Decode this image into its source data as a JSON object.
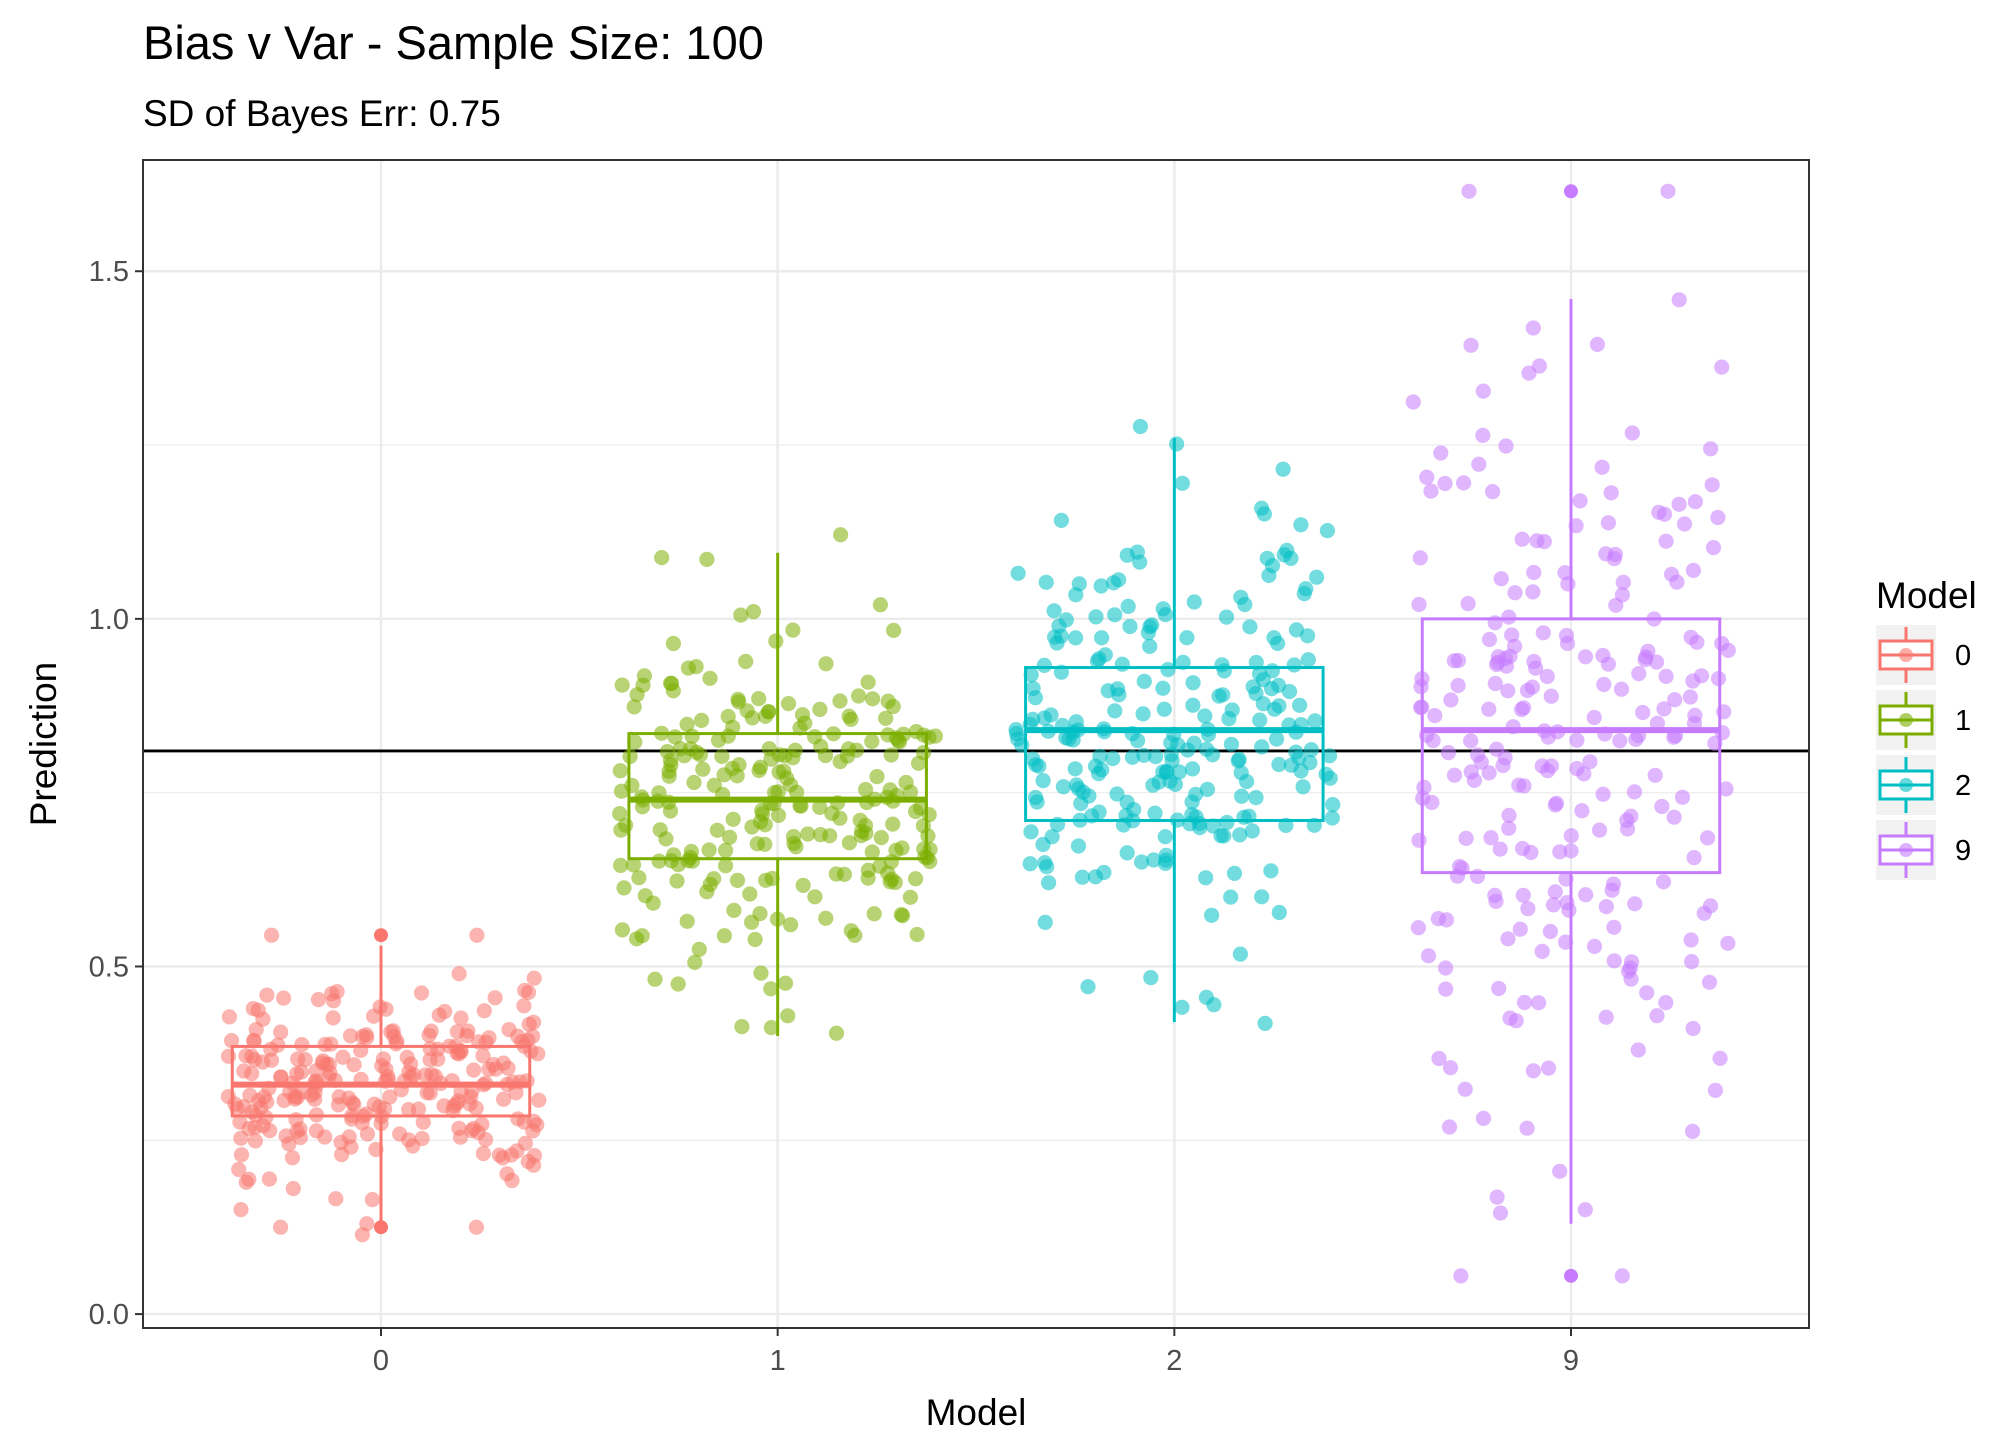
{
  "chart_data": {
    "type": "boxplot",
    "title": "Bias v Var - Sample Size: 100",
    "subtitle": "SD of Bayes Err: 0.75",
    "xlabel": "Model",
    "ylabel": "Prediction",
    "categories": [
      "0",
      "1",
      "2",
      "9"
    ],
    "y_ticks": [
      "0.0",
      "0.5",
      "1.0",
      "1.5"
    ],
    "ylim": [
      -0.02,
      1.66
    ],
    "grid": true,
    "reference_line": 0.81,
    "legend": {
      "title": "Model",
      "position": "right",
      "entries": [
        "0",
        "1",
        "2",
        "9"
      ]
    },
    "colors": [
      "#F8766D",
      "#7CAE00",
      "#00BFC4",
      "#C77CFF"
    ],
    "series": [
      {
        "name": "0",
        "min": 0.13,
        "q1": 0.285,
        "median": 0.33,
        "q3": 0.385,
        "max": 0.53,
        "spread": 0.075,
        "n": 250,
        "outliers": [
          0.125,
          0.545
        ]
      },
      {
        "name": "1",
        "min": 0.4,
        "q1": 0.655,
        "median": 0.74,
        "q3": 0.835,
        "max": 1.095,
        "spread": 0.13,
        "n": 250,
        "outliers": []
      },
      {
        "name": "2",
        "min": 0.42,
        "q1": 0.71,
        "median": 0.84,
        "q3": 0.93,
        "max": 1.26,
        "spread": 0.15,
        "n": 250,
        "outliers": []
      },
      {
        "name": "9",
        "min": 0.13,
        "q1": 0.635,
        "median": 0.84,
        "q3": 1.0,
        "max": 1.46,
        "spread": 0.28,
        "n": 250,
        "outliers": [
          0.055,
          1.615
        ]
      }
    ]
  }
}
